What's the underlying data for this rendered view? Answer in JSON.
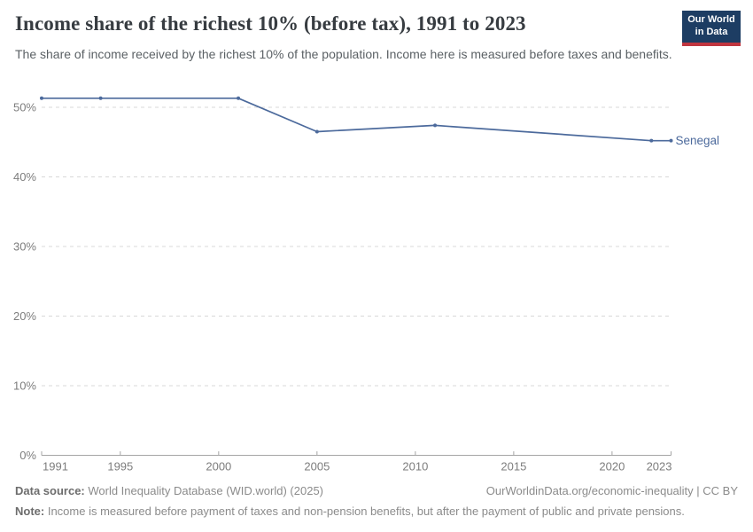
{
  "header": {
    "title": "Income share of the richest 10% (before tax), 1991 to 2023",
    "subtitle": "The share of income received by the richest 10% of the population. Income here is measured before taxes and benefits.",
    "logo": {
      "line1": "Our World",
      "line2": "in Data"
    }
  },
  "chart_data": {
    "type": "line",
    "title": "Income share of the richest 10% (before tax), 1991 to 2023",
    "series": [
      {
        "name": "Senegal",
        "color": "#4C6A9C",
        "x": [
          1991,
          1994,
          2001,
          2005,
          2011,
          2022,
          2023
        ],
        "values": [
          51.3,
          51.3,
          51.3,
          46.5,
          47.4,
          45.2,
          45.2
        ]
      }
    ],
    "xlabel": "",
    "ylabel": "",
    "xticks": [
      1991,
      1995,
      2000,
      2005,
      2010,
      2015,
      2020,
      2023
    ],
    "yticks": [
      0,
      10,
      20,
      30,
      40,
      50
    ],
    "ytick_suffix": "%",
    "xlim": [
      1991,
      2023
    ],
    "ylim": [
      0,
      55
    ],
    "grid": "horizontal-dashed",
    "legend_position": "end-of-line-label"
  },
  "footer": {
    "datasource_label": "Data source:",
    "datasource_text": " World Inequality Database (WID.world) (2025)",
    "rights": "OurWorldinData.org/economic-inequality | CC BY",
    "note_label": "Note:",
    "note_text": " Income is measured before payment of taxes and non-pension benefits, but after the payment of public and private pensions."
  },
  "colors": {
    "line": "#4C6A9C",
    "logo_navy": "#1D3D63",
    "logo_red": "#C0353F",
    "gridline": "#d8d8d8",
    "axis": "#a5a5a5",
    "tick_label": "#7d7d7d"
  }
}
